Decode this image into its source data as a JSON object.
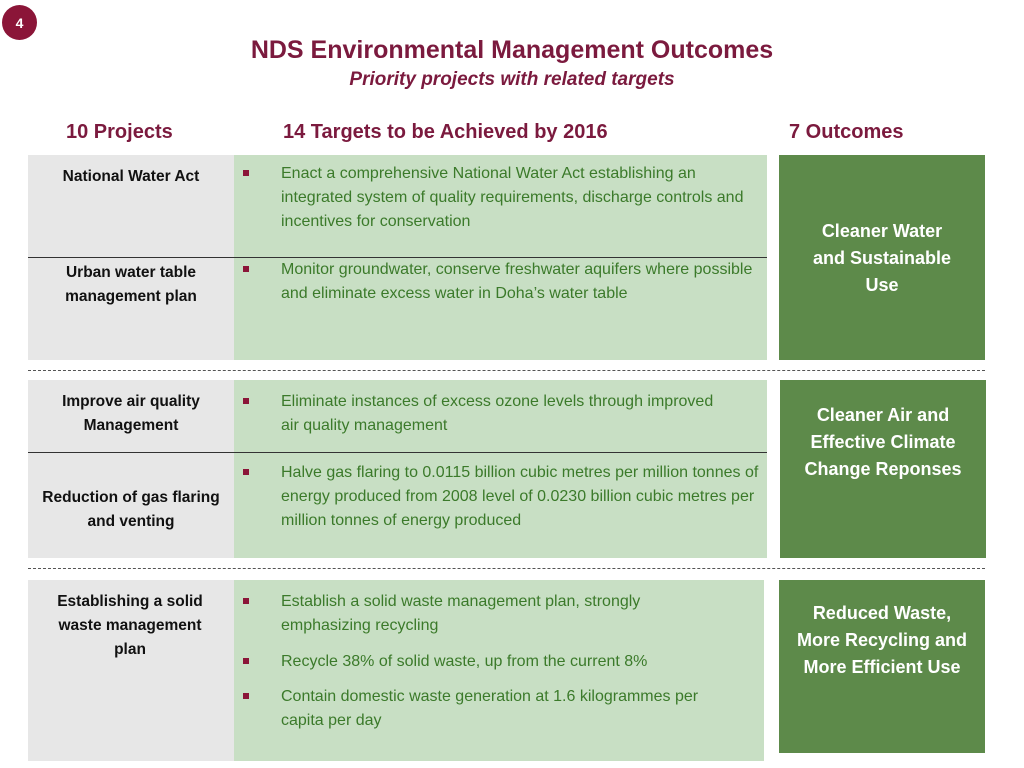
{
  "slide_number": "4",
  "title": "NDS Environmental Management Outcomes",
  "subtitle": "Priority projects with related targets",
  "headers": {
    "projects": "10 Projects",
    "targets": "14 Targets to be Achieved by 2016",
    "outcomes": "7 Outcomes"
  },
  "groups": [
    {
      "projects": [
        "National Water Act",
        "Urban water table management plan"
      ],
      "targets": [
        "Enact a comprehensive National Water Act establishing an integrated system of quality requirements, discharge controls and incentives for conservation",
        "Monitor groundwater, conserve freshwater aquifers where possible and eliminate excess water in Doha’s water table"
      ],
      "outcome": "Cleaner Water and Sustainable Use"
    },
    {
      "projects": [
        "Improve air quality Management",
        "Reduction of gas flaring and venting"
      ],
      "targets": [
        "Eliminate instances of excess ozone levels through improved air quality management",
        "Halve gas flaring to 0.0115 billion cubic metres per million tonnes of energy produced from 2008 level of  0.0230 billion cubic metres per million tonnes of energy produced"
      ],
      "outcome": "Cleaner Air and Effective Climate Change Reponses"
    },
    {
      "projects": [
        "Establishing a solid waste management plan"
      ],
      "targets": [
        "Establish a solid waste management plan, strongly emphasizing recycling",
        "Recycle 38% of solid waste, up from the current 8%",
        "Contain domestic waste generation at 1.6 kilogrammes per capita per day"
      ],
      "outcome": "Reduced Waste, More Recycling and More Efficient Use"
    }
  ],
  "colors": {
    "accent": "#7b1a3e",
    "project_bg": "#e7e7e7",
    "target_bg": "#c8dfc4",
    "outcome_bg": "#5d8a4a",
    "target_text": "#3b7a2a"
  }
}
